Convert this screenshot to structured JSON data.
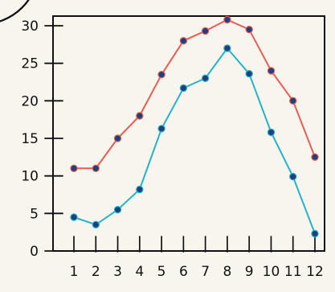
{
  "chart_data": {
    "type": "line",
    "title": "",
    "xlabel": "",
    "ylabel": "",
    "x": [
      1,
      2,
      3,
      4,
      5,
      6,
      7,
      8,
      9,
      10,
      11,
      12
    ],
    "x_tick_labels": [
      "1",
      "2",
      "3",
      "4",
      "5",
      "6",
      "7",
      "8",
      "9",
      "10",
      "11",
      "12"
    ],
    "y_tick_values": [
      0,
      5,
      10,
      15,
      20,
      25,
      30
    ],
    "y_tick_labels": [
      "0",
      "5",
      "10",
      "15",
      "20",
      "25",
      "30"
    ],
    "xlim": [
      0,
      12.5
    ],
    "ylim": [
      0,
      31.5
    ],
    "grid": false,
    "legend": "none",
    "series": [
      {
        "color": "#e45e55",
        "values": [
          11,
          11,
          15,
          18,
          23.5,
          28,
          29.3,
          30.8,
          29.5,
          24,
          20,
          12.5
        ]
      },
      {
        "color": "#26b3c8",
        "values": [
          4.5,
          3.5,
          5.5,
          8.2,
          16.3,
          21.7,
          23,
          27,
          23.6,
          15.8,
          9.9,
          2.3
        ]
      }
    ]
  }
}
